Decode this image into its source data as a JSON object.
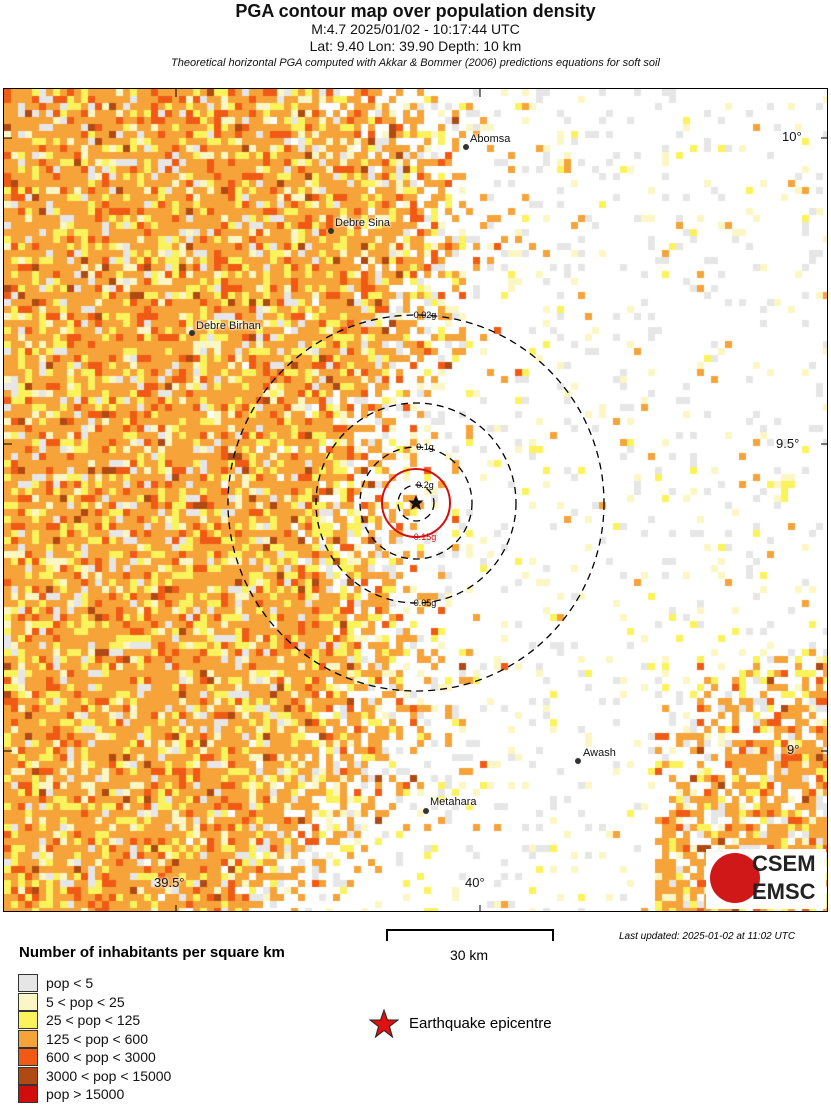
{
  "header": {
    "title": "PGA contour map over population density",
    "line1": "M:4.7 2025/01/02 - 10:17:44 UTC",
    "line2": "Lat: 9.40 Lon: 39.90 Depth: 10 km",
    "line3": "Theoretical horizontal PGA computed with Akkar & Bommer (2006) predictions equations for soft soil"
  },
  "map": {
    "cities": [
      {
        "name": "Abomsa"
      },
      {
        "name": "Debre Sina"
      },
      {
        "name": "Debre Birhan"
      },
      {
        "name": "Awash"
      },
      {
        "name": "Metahara"
      }
    ],
    "lat_ticks": [
      "10°",
      "9.5°",
      "9°"
    ],
    "lon_ticks": [
      "39.5°",
      "40°"
    ],
    "contours": [
      {
        "label": "0.02g",
        "color": "#000000",
        "style": "dashed"
      },
      {
        "label": "0.05g",
        "color": "#000000",
        "style": "dashed"
      },
      {
        "label": "0.1g",
        "color": "#000000",
        "style": "dashed"
      },
      {
        "label": "0.15g",
        "color": "#d01010",
        "style": "solid"
      },
      {
        "label": "0.2g",
        "color": "#000000",
        "style": "dashed"
      }
    ],
    "logo": {
      "top": "CSEM",
      "bottom": "EMSC"
    }
  },
  "scale": {
    "label": "30 km"
  },
  "updated": "Last updated: 2025-01-02 at 11:02 UTC",
  "legend": {
    "title": "Number of inhabitants per square km",
    "items": [
      {
        "label": "pop < 5",
        "color": "#e6e6e6"
      },
      {
        "label": "5 < pop < 25",
        "color": "#fbf7c4"
      },
      {
        "label": "25 < pop < 125",
        "color": "#fbf35c"
      },
      {
        "label": "125 < pop < 600",
        "color": "#f6a33a"
      },
      {
        "label": "600 < pop < 3000",
        "color": "#f05a14"
      },
      {
        "label": "3000 < pop < 15000",
        "color": "#b04a14"
      },
      {
        "label": "pop > 15000",
        "color": "#d00c0c"
      }
    ],
    "epicentre_label": "Earthquake epicentre",
    "epicentre_color": "#e01010"
  }
}
